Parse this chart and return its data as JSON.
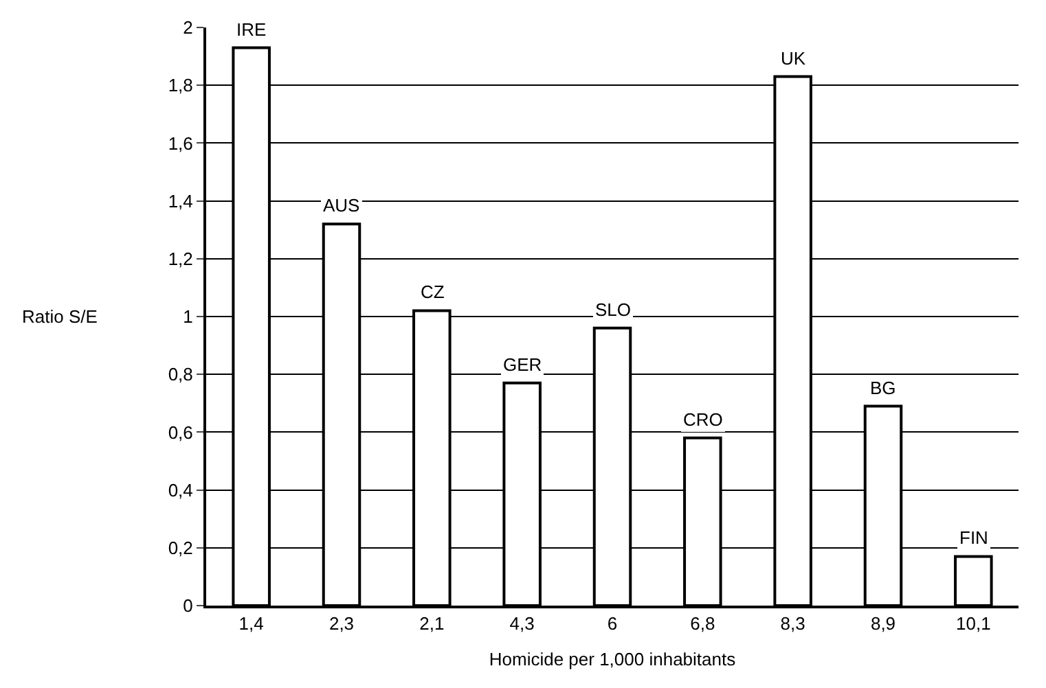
{
  "chart_data": {
    "type": "bar",
    "xlabel": "Homicide per 1,000 inhabitants",
    "ylabel": "Ratio S/E",
    "categories": [
      "1,4",
      "2,3",
      "2,1",
      "4,3",
      "6",
      "6,8",
      "8,3",
      "8,9",
      "10,1"
    ],
    "values": [
      1.93,
      1.32,
      1.02,
      0.77,
      0.96,
      0.58,
      1.83,
      0.69,
      0.17
    ],
    "color": "#ffffff",
    "ylim": [
      0,
      2
    ],
    "yticks": [
      0,
      {
        "value": 0.2,
        "label": "0,2"
      },
      {
        "value": 0.4,
        "label": "0,4"
      },
      {
        "value": 0.6,
        "label": "0,6"
      },
      {
        "value": 0.8,
        "label": "0,8"
      },
      1,
      {
        "value": 1.2,
        "label": "1,2"
      },
      {
        "value": 1.4,
        "label": "1,4"
      },
      {
        "value": 1.6,
        "label": "1,6"
      },
      {
        "value": 1.8,
        "label": "1,8"
      },
      2
    ],
    "grid": "y",
    "annotations": [
      {
        "text": "IRE",
        "x": "1,4",
        "y": 1.93
      },
      {
        "text": "AUS",
        "x": "2,3",
        "y": 1.32
      },
      {
        "text": "CZ",
        "x": "2,1",
        "y": 1.02
      },
      {
        "text": "GER",
        "x": "4,3",
        "y": 0.77
      },
      {
        "text": "SLO",
        "x": "6",
        "y": 0.96
      },
      {
        "text": "CRO",
        "x": "6,8",
        "y": 0.58
      },
      {
        "text": "UK",
        "x": "8,3",
        "y": 1.83
      },
      {
        "text": "BG",
        "x": "8,9",
        "y": 0.69
      },
      {
        "text": "FIN",
        "x": "10,1",
        "y": 0.17
      }
    ]
  }
}
